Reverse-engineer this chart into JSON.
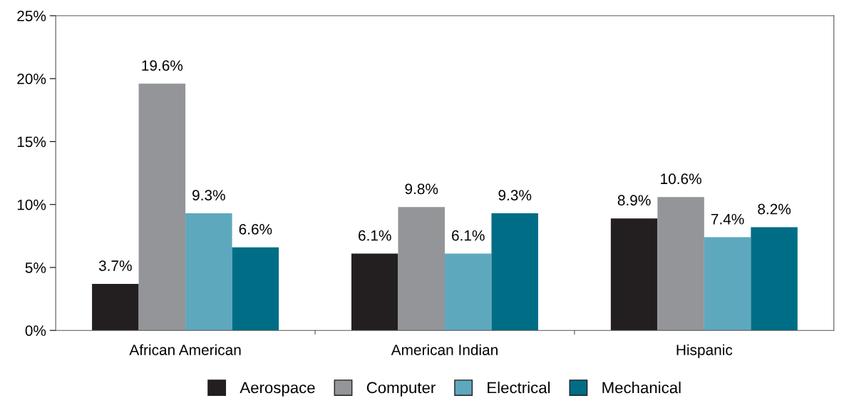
{
  "chart_data": {
    "type": "bar",
    "categories": [
      "African American",
      "American Indian",
      "Hispanic"
    ],
    "series": [
      {
        "name": "Aerospace",
        "color": "#231f20",
        "values": [
          3.7,
          6.1,
          8.9
        ],
        "value_labels": [
          "3.7%",
          "6.1%",
          "8.9%"
        ]
      },
      {
        "name": "Computer",
        "color": "#939598",
        "values": [
          19.6,
          9.8,
          10.6
        ],
        "value_labels": [
          "19.6%",
          "9.8%",
          "10.6%"
        ]
      },
      {
        "name": "Electrical",
        "color": "#5ea8be",
        "values": [
          9.3,
          6.1,
          7.4
        ],
        "value_labels": [
          "9.3%",
          "6.1%",
          "7.4%"
        ]
      },
      {
        "name": "Mechanical",
        "color": "#006d87",
        "values": [
          6.6,
          9.3,
          8.2
        ],
        "value_labels": [
          "6.6%",
          "9.3%",
          "8.2%"
        ]
      }
    ],
    "ylim": [
      0,
      25
    ],
    "yticks": [
      {
        "value": 0,
        "label": "0%"
      },
      {
        "value": 5,
        "label": "5%"
      },
      {
        "value": 10,
        "label": "10%"
      },
      {
        "value": 15,
        "label": "15%"
      },
      {
        "value": 20,
        "label": "20%"
      },
      {
        "value": 25,
        "label": "25%"
      }
    ],
    "grid": false,
    "legend": "bottom"
  }
}
